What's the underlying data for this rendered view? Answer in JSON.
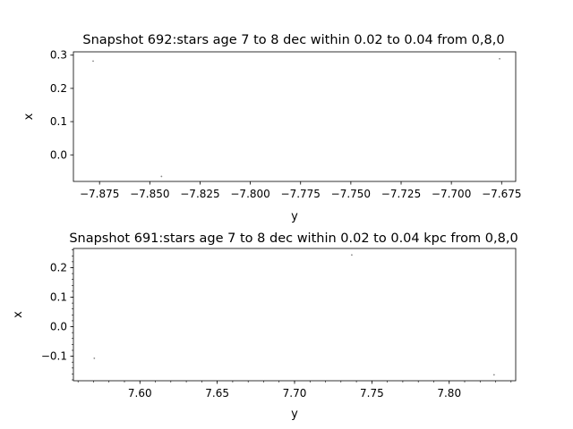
{
  "chart_data": [
    {
      "type": "scatter",
      "title": "Snapshot 692:stars age 7 to 8 dec within 0.02 to 0.04 from 0,8,0",
      "xlabel": "y",
      "ylabel": "x",
      "xlim": [
        -7.888,
        -7.668
      ],
      "ylim": [
        -0.08,
        0.31
      ],
      "xticks": [
        -7.875,
        -7.85,
        -7.825,
        -7.8,
        -7.775,
        -7.75,
        -7.725,
        -7.7,
        -7.675
      ],
      "xtick_labels": [
        "−7.875",
        "−7.850",
        "−7.825",
        "−7.800",
        "−7.775",
        "−7.750",
        "−7.725",
        "−7.700",
        "−7.675"
      ],
      "yticks": [
        0.0,
        0.1,
        0.2,
        0.3
      ],
      "ytick_labels": [
        "0.0",
        "0.1",
        "0.2",
        "0.3"
      ],
      "minor_ticks": false,
      "grid": false,
      "points": [
        {
          "x": -7.8782,
          "y": 0.282
        },
        {
          "x": -7.8442,
          "y": -0.065
        },
        {
          "x": -7.676,
          "y": 0.289
        }
      ],
      "marker_color": "#888888"
    },
    {
      "type": "scatter",
      "title": "Snapshot 691:stars age 7 to 8 dec within 0.02 to 0.04 kpc from 0,8,0",
      "xlabel": "y",
      "ylabel": "x",
      "xlim": [
        7.557,
        7.843
      ],
      "ylim": [
        -0.183,
        0.265
      ],
      "xticks": [
        7.6,
        7.65,
        7.7,
        7.75,
        7.8
      ],
      "xtick_labels": [
        "7.60",
        "7.65",
        "7.70",
        "7.75",
        "7.80"
      ],
      "yticks": [
        -0.1,
        0.0,
        0.1,
        0.2
      ],
      "ytick_labels": [
        "−0.1",
        "0.0",
        "0.1",
        "0.2"
      ],
      "minor_ticks": true,
      "grid": false,
      "points": [
        {
          "x": 7.5705,
          "y": -0.107
        },
        {
          "x": 7.737,
          "y": 0.243
        },
        {
          "x": 7.829,
          "y": -0.163
        }
      ],
      "marker_color": "#888888"
    }
  ]
}
